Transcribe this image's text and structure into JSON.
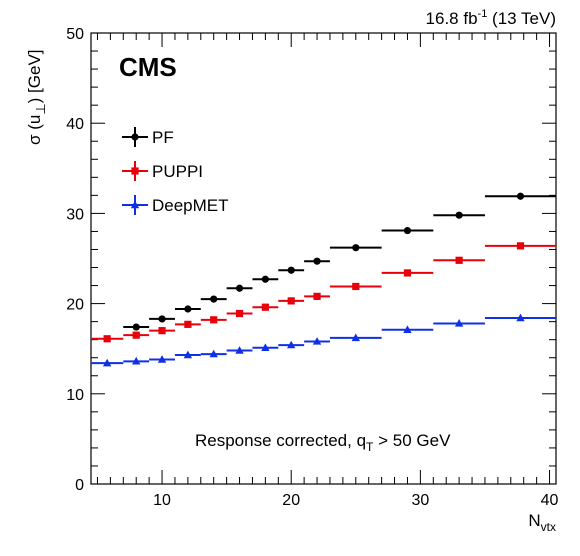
{
  "chart_data": {
    "type": "scatter",
    "experiment_label": "CMS",
    "lumi_label": {
      "value": "16.8 fb",
      "exponent": "-1",
      "suffix": " (13 TeV)"
    },
    "annotation": {
      "main": "Response corrected, q",
      "subscript": "T",
      "tail": " > 50 GeV"
    },
    "xlabel": {
      "main": "N",
      "subscript": "vtx"
    },
    "ylabel": {
      "main": "σ (u",
      "subscript": "⊥",
      "tail": ") [GeV]"
    },
    "xlim": [
      4.5,
      40.5
    ],
    "ylim": [
      0,
      50
    ],
    "x_ticks": [
      10,
      20,
      30,
      40
    ],
    "y_ticks": [
      0,
      10,
      20,
      30,
      40,
      50
    ],
    "legend": {
      "position": "top-left"
    },
    "series": [
      {
        "name": "PF",
        "color": "#000000",
        "marker": "circle",
        "bins": [
          {
            "lo": 7,
            "hi": 9,
            "y": 17.4
          },
          {
            "lo": 9,
            "hi": 11,
            "y": 18.3
          },
          {
            "lo": 11,
            "hi": 13,
            "y": 19.4
          },
          {
            "lo": 13,
            "hi": 15,
            "y": 20.5
          },
          {
            "lo": 15,
            "hi": 17,
            "y": 21.7
          },
          {
            "lo": 17,
            "hi": 19,
            "y": 22.7
          },
          {
            "lo": 19,
            "hi": 21,
            "y": 23.7
          },
          {
            "lo": 21,
            "hi": 23,
            "y": 24.7
          },
          {
            "lo": 23,
            "hi": 27,
            "y": 26.2
          },
          {
            "lo": 27,
            "hi": 31,
            "y": 28.1
          },
          {
            "lo": 31,
            "hi": 35,
            "y": 29.8
          },
          {
            "lo": 35,
            "hi": 40.5,
            "y": 31.9
          }
        ]
      },
      {
        "name": "PUPPI",
        "color": "#e8000b",
        "marker": "square",
        "bins": [
          {
            "lo": 4.5,
            "hi": 7,
            "y": 16.1
          },
          {
            "lo": 7,
            "hi": 9,
            "y": 16.5
          },
          {
            "lo": 9,
            "hi": 11,
            "y": 17.0
          },
          {
            "lo": 11,
            "hi": 13,
            "y": 17.7
          },
          {
            "lo": 13,
            "hi": 15,
            "y": 18.2
          },
          {
            "lo": 15,
            "hi": 17,
            "y": 18.9
          },
          {
            "lo": 17,
            "hi": 19,
            "y": 19.6
          },
          {
            "lo": 19,
            "hi": 21,
            "y": 20.3
          },
          {
            "lo": 21,
            "hi": 23,
            "y": 20.8
          },
          {
            "lo": 23,
            "hi": 27,
            "y": 21.9
          },
          {
            "lo": 27,
            "hi": 31,
            "y": 23.4
          },
          {
            "lo": 31,
            "hi": 35,
            "y": 24.8
          },
          {
            "lo": 35,
            "hi": 40.5,
            "y": 26.4
          }
        ]
      },
      {
        "name": "DeepMET",
        "color": "#1030e8",
        "marker": "triangle",
        "bins": [
          {
            "lo": 4.5,
            "hi": 7,
            "y": 13.4
          },
          {
            "lo": 7,
            "hi": 9,
            "y": 13.6
          },
          {
            "lo": 9,
            "hi": 11,
            "y": 13.8
          },
          {
            "lo": 11,
            "hi": 13,
            "y": 14.3
          },
          {
            "lo": 13,
            "hi": 15,
            "y": 14.4
          },
          {
            "lo": 15,
            "hi": 17,
            "y": 14.8
          },
          {
            "lo": 17,
            "hi": 19,
            "y": 15.1
          },
          {
            "lo": 19,
            "hi": 21,
            "y": 15.4
          },
          {
            "lo": 21,
            "hi": 23,
            "y": 15.8
          },
          {
            "lo": 23,
            "hi": 27,
            "y": 16.2
          },
          {
            "lo": 27,
            "hi": 31,
            "y": 17.1
          },
          {
            "lo": 31,
            "hi": 35,
            "y": 17.8
          },
          {
            "lo": 35,
            "hi": 40.5,
            "y": 18.4
          }
        ]
      }
    ]
  }
}
